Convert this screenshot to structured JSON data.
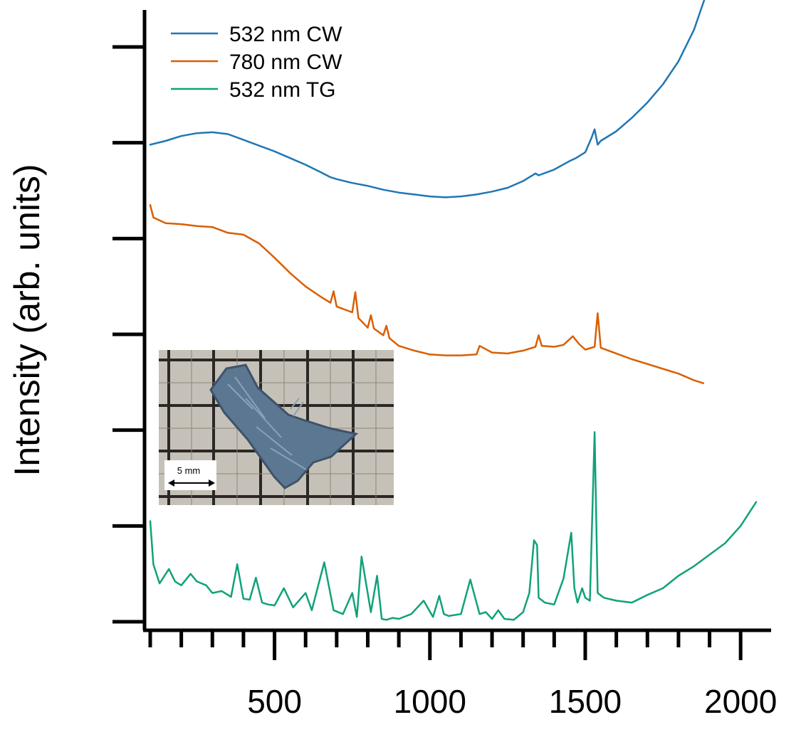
{
  "chart_data": {
    "type": "line",
    "title": "",
    "xlabel": "",
    "ylabel": "Intensity (arb. units)",
    "xlim": [
      90,
      2050
    ],
    "ylim": [
      0,
      6
    ],
    "x_ticks": [
      500,
      1000,
      1500,
      2000
    ],
    "x_minor_step": 100,
    "y_ticks": [
      0,
      1,
      2,
      3,
      4,
      5,
      6
    ],
    "y_tick_labels_shown": false,
    "grid": false,
    "legend": {
      "placement": "top-left"
    },
    "series": [
      {
        "name": "532 nm CW",
        "color": "#1f77b4",
        "x": [
          100,
          150,
          200,
          250,
          300,
          350,
          400,
          450,
          500,
          550,
          600,
          650,
          680,
          700,
          750,
          800,
          850,
          900,
          950,
          1000,
          1050,
          1100,
          1150,
          1200,
          1250,
          1300,
          1340,
          1350,
          1400,
          1450,
          1470,
          1500,
          1520,
          1530,
          1540,
          1550,
          1600,
          1650,
          1700,
          1750,
          1800,
          1850,
          1900
        ],
        "y": [
          4.98,
          5.02,
          5.07,
          5.1,
          5.11,
          5.09,
          5.03,
          4.97,
          4.91,
          4.84,
          4.77,
          4.69,
          4.64,
          4.62,
          4.58,
          4.55,
          4.51,
          4.48,
          4.46,
          4.44,
          4.43,
          4.44,
          4.46,
          4.49,
          4.53,
          4.6,
          4.68,
          4.66,
          4.72,
          4.81,
          4.84,
          4.9,
          5.05,
          5.14,
          4.98,
          5.02,
          5.12,
          5.26,
          5.42,
          5.61,
          5.85,
          6.18,
          6.65
        ]
      },
      {
        "name": "780 nm CW",
        "color": "#d95f02",
        "x": [
          100,
          110,
          150,
          200,
          250,
          300,
          350,
          400,
          450,
          500,
          550,
          600,
          650,
          680,
          690,
          700,
          750,
          760,
          770,
          800,
          810,
          820,
          850,
          860,
          870,
          900,
          950,
          1000,
          1050,
          1100,
          1150,
          1160,
          1200,
          1250,
          1300,
          1340,
          1350,
          1360,
          1400,
          1430,
          1460,
          1480,
          1500,
          1530,
          1540,
          1550,
          1600,
          1650,
          1700,
          1750,
          1800,
          1850,
          1880
        ],
        "y": [
          4.35,
          4.22,
          4.16,
          4.15,
          4.13,
          4.12,
          4.06,
          4.04,
          3.95,
          3.8,
          3.64,
          3.5,
          3.39,
          3.33,
          3.45,
          3.29,
          3.23,
          3.44,
          3.17,
          3.07,
          3.2,
          3.06,
          2.99,
          3.09,
          2.96,
          2.88,
          2.83,
          2.79,
          2.78,
          2.78,
          2.79,
          2.88,
          2.81,
          2.8,
          2.83,
          2.87,
          2.99,
          2.88,
          2.87,
          2.89,
          2.98,
          2.9,
          2.84,
          2.87,
          3.22,
          2.86,
          2.8,
          2.74,
          2.69,
          2.64,
          2.59,
          2.52,
          2.49
        ]
      },
      {
        "name": "532 nm TG",
        "color": "#10a27a",
        "x": [
          100,
          110,
          130,
          160,
          180,
          200,
          230,
          250,
          280,
          300,
          330,
          360,
          380,
          400,
          420,
          440,
          460,
          480,
          500,
          530,
          560,
          600,
          620,
          660,
          690,
          720,
          750,
          765,
          780,
          810,
          830,
          845,
          860,
          880,
          900,
          940,
          980,
          1010,
          1030,
          1045,
          1060,
          1100,
          1130,
          1150,
          1160,
          1180,
          1200,
          1220,
          1240,
          1270,
          1300,
          1320,
          1335,
          1345,
          1350,
          1370,
          1400,
          1430,
          1455,
          1465,
          1475,
          1490,
          1500,
          1515,
          1530,
          1540,
          1548,
          1560,
          1600,
          1650,
          1700,
          1750,
          1800,
          1850,
          1900,
          1950,
          2000,
          2050
        ],
        "y": [
          1.05,
          0.6,
          0.4,
          0.55,
          0.42,
          0.38,
          0.5,
          0.42,
          0.38,
          0.3,
          0.32,
          0.26,
          0.6,
          0.24,
          0.23,
          0.46,
          0.2,
          0.18,
          0.17,
          0.35,
          0.15,
          0.3,
          0.12,
          0.62,
          0.12,
          0.08,
          0.3,
          0.05,
          0.68,
          0.1,
          0.48,
          0.03,
          0.02,
          0.04,
          0.03,
          0.08,
          0.22,
          0.05,
          0.27,
          0.08,
          0.06,
          0.08,
          0.44,
          0.2,
          0.08,
          0.1,
          0.03,
          0.12,
          0.03,
          0.02,
          0.1,
          0.3,
          0.85,
          0.8,
          0.25,
          0.2,
          0.18,
          0.45,
          0.93,
          0.35,
          0.2,
          0.35,
          0.25,
          0.22,
          1.98,
          0.3,
          0.28,
          0.25,
          0.22,
          0.2,
          0.28,
          0.35,
          0.48,
          0.58,
          0.7,
          0.82,
          1.0,
          1.25
        ]
      }
    ]
  },
  "inset": {
    "scale_label": "5 mm"
  }
}
